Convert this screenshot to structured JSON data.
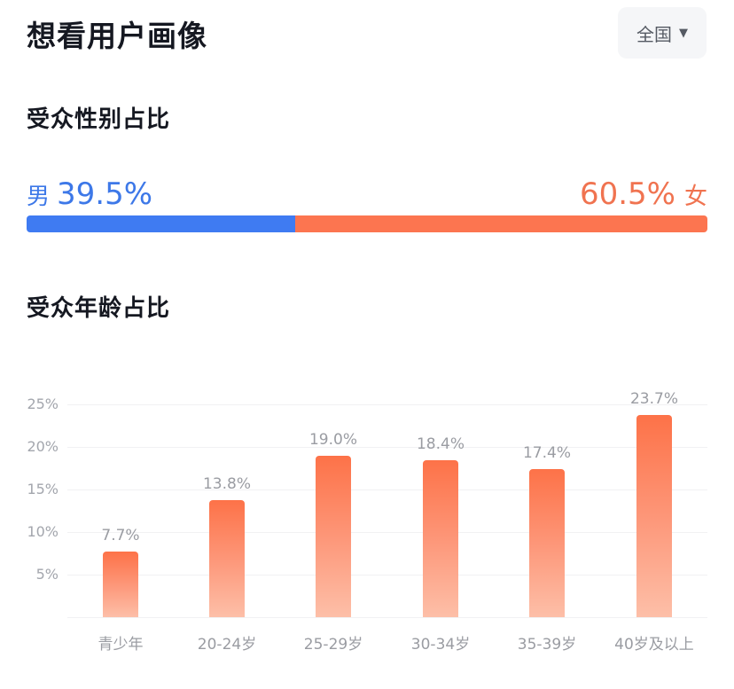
{
  "header": {
    "title": "想看用户画像",
    "region_selector": {
      "label": "全国",
      "caret": "▼",
      "icon": "caret-down-icon"
    }
  },
  "gender_section": {
    "title": "受众性别占比",
    "male": {
      "label": "男",
      "percent": "39.5%",
      "value": 39.5,
      "color": "#3f7bf2"
    },
    "female": {
      "label": "女",
      "percent": "60.5%",
      "value": 60.5,
      "color": "#fc7550"
    }
  },
  "age_section": {
    "title": "受众年龄占比"
  },
  "chart_data": [
    {
      "type": "bar",
      "title": "受众性别占比",
      "categories": [
        "男",
        "女"
      ],
      "values": [
        39.5,
        60.5
      ],
      "colors": [
        "#3f7bf2",
        "#fc7550"
      ],
      "orientation": "horizontal-stacked",
      "unit": "%"
    },
    {
      "type": "bar",
      "title": "受众年龄占比",
      "categories": [
        "青少年",
        "20-24岁",
        "25-29岁",
        "30-34岁",
        "35-39岁",
        "40岁及以上"
      ],
      "values": [
        7.7,
        13.8,
        19.0,
        18.4,
        17.4,
        23.7
      ],
      "value_labels": [
        "7.7%",
        "13.8%",
        "19.0%",
        "18.4%",
        "17.4%",
        "23.7%"
      ],
      "xlabel": "",
      "ylabel": "",
      "ylim": [
        0,
        25
      ],
      "yticks": [
        "5%",
        "10%",
        "15%",
        "20%",
        "25%"
      ],
      "grid": true,
      "legend": "none",
      "bar_color_gradient": [
        "#fd7248",
        "#fdbfa8"
      ]
    }
  ]
}
